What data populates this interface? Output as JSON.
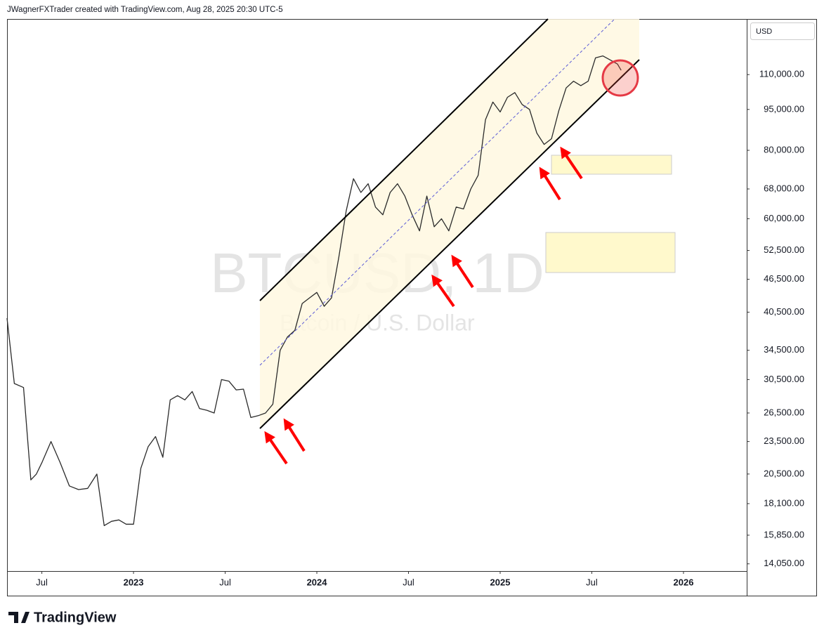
{
  "header": "JWagnerFXTrader created with TradingView.com, Aug 28, 2025 20:30 UTC-5",
  "currency": "USD",
  "brand": "TradingView",
  "chart_data": {
    "type": "line",
    "title": "BTCUSD, 1D",
    "subtitle": "Bitcoin / U.S. Dollar",
    "log_scale": true,
    "grid": false,
    "x": [
      2022.31,
      2022.35,
      2022.4,
      2022.44,
      2022.47,
      2022.5,
      2022.55,
      2022.6,
      2022.65,
      2022.7,
      2022.75,
      2022.8,
      2022.84,
      2022.88,
      2022.92,
      2022.96,
      2023.0,
      2023.04,
      2023.08,
      2023.12,
      2023.16,
      2023.2,
      2023.24,
      2023.28,
      2023.32,
      2023.36,
      2023.4,
      2023.44,
      2023.48,
      2023.52,
      2023.56,
      2023.6,
      2023.64,
      2023.68,
      2023.72,
      2023.76,
      2023.8,
      2023.84,
      2023.88,
      2023.92,
      2023.96,
      2024.0,
      2024.04,
      2024.08,
      2024.12,
      2024.16,
      2024.2,
      2024.24,
      2024.28,
      2024.32,
      2024.36,
      2024.4,
      2024.44,
      2024.48,
      2024.52,
      2024.56,
      2024.6,
      2024.64,
      2024.68,
      2024.72,
      2024.76,
      2024.8,
      2024.84,
      2024.88,
      2024.92,
      2024.96,
      2025.0,
      2025.04,
      2025.08,
      2025.12,
      2025.16,
      2025.2,
      2025.24,
      2025.28,
      2025.32,
      2025.36,
      2025.4,
      2025.44,
      2025.48,
      2025.52,
      2025.56,
      2025.6,
      2025.64,
      2025.66
    ],
    "series": [
      {
        "name": "BTCUSD",
        "color": "#2b2b2b",
        "values": [
          39500,
          30000,
          29500,
          20000,
          20500,
          21500,
          23500,
          21500,
          19500,
          19200,
          19300,
          20500,
          16500,
          16800,
          16900,
          16600,
          16600,
          21000,
          23000,
          24000,
          22000,
          28000,
          28500,
          28000,
          29000,
          27000,
          26800,
          26500,
          30500,
          30300,
          29200,
          29300,
          26000,
          26200,
          26500,
          27500,
          34500,
          36500,
          37500,
          42000,
          43000,
          44000,
          41500,
          43000,
          51000,
          62000,
          71000,
          67000,
          69500,
          63000,
          61000,
          67000,
          69500,
          66000,
          61000,
          57000,
          66000,
          58000,
          60000,
          57000,
          63000,
          62500,
          68000,
          72000,
          91000,
          98000,
          94000,
          100000,
          102000,
          97000,
          95000,
          86000,
          82000,
          84000,
          94500,
          104000,
          107000,
          105000,
          107000,
          118000,
          119000,
          117000,
          115000,
          112000
        ]
      }
    ],
    "xlim": [
      2022.31,
      2026.345
    ],
    "xticks": [
      {
        "value": 2022.5,
        "label": "Jul"
      },
      2023,
      {
        "value": 2023.5,
        "label": "Jul"
      },
      2024,
      {
        "value": 2024.5,
        "label": "Jul"
      },
      2025,
      {
        "value": 2025.5,
        "label": "Jul"
      },
      2026
    ],
    "ylim": [
      13630,
      139000
    ],
    "yticks": [
      {
        "value": 110000,
        "label": "110,000.00"
      },
      {
        "value": 95000,
        "label": "95,000.00"
      },
      {
        "value": 80000,
        "label": "80,000.00"
      },
      {
        "value": 68000,
        "label": "68,000.00"
      },
      {
        "value": 60000,
        "label": "60,000.00"
      },
      {
        "value": 52500,
        "label": "52,500.00"
      },
      {
        "value": 46500,
        "label": "46,500.00"
      },
      {
        "value": 40500,
        "label": "40,500.00"
      },
      {
        "value": 34500,
        "label": "34,500.00"
      },
      {
        "value": 30500,
        "label": "30,500.00"
      },
      {
        "value": 26500,
        "label": "26,500.00"
      },
      {
        "value": 23500,
        "label": "23,500.00"
      },
      {
        "value": 20500,
        "label": "20,500.00"
      },
      {
        "value": 18100,
        "label": "18,100.00"
      },
      {
        "value": 15850,
        "label": "15,850.00"
      },
      {
        "value": 14050,
        "label": "14,050.00"
      }
    ]
  }
}
